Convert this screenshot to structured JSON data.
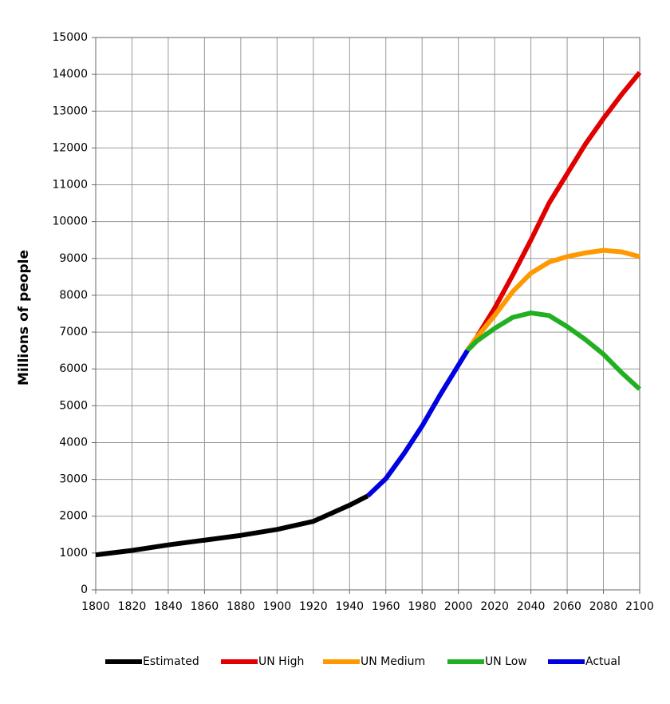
{
  "chart_data": {
    "type": "line",
    "y_label": "Millions of people",
    "x": [
      1800,
      1820,
      1840,
      1860,
      1880,
      1900,
      1920,
      1940,
      1950,
      1960,
      1970,
      1980,
      1990,
      2000,
      2005,
      2010,
      2020,
      2030,
      2040,
      2050,
      2060,
      2070,
      2080,
      2090,
      2100
    ],
    "series": [
      {
        "name": "Estimated",
        "color": "#000000",
        "values": [
          950,
          1070,
          1220,
          1350,
          1480,
          1640,
          1860,
          2300,
          2550,
          null,
          null,
          null,
          null,
          null,
          null,
          null,
          null,
          null,
          null,
          null,
          null,
          null,
          null,
          null,
          null
        ]
      },
      {
        "name": "UN High",
        "color": "#e00000",
        "values": [
          null,
          null,
          null,
          null,
          null,
          null,
          null,
          null,
          null,
          null,
          null,
          null,
          null,
          null,
          6500,
          6850,
          7650,
          8550,
          9500,
          10500,
          11300,
          12100,
          12800,
          13450,
          14050
        ]
      },
      {
        "name": "UN Medium",
        "color": "#ff9900",
        "values": [
          null,
          null,
          null,
          null,
          null,
          null,
          null,
          null,
          null,
          null,
          null,
          null,
          null,
          null,
          6500,
          6850,
          7450,
          8100,
          8600,
          8900,
          9050,
          9150,
          9220,
          9180,
          9050
        ]
      },
      {
        "name": "UN Low",
        "color": "#22b022",
        "values": [
          null,
          null,
          null,
          null,
          null,
          null,
          null,
          null,
          null,
          null,
          null,
          null,
          null,
          null,
          6500,
          6750,
          7100,
          7400,
          7520,
          7450,
          7150,
          6800,
          6400,
          5900,
          5450
        ]
      },
      {
        "name": "Actual",
        "color": "#0000e0",
        "values": [
          null,
          null,
          null,
          null,
          null,
          null,
          null,
          null,
          2550,
          3020,
          3700,
          4450,
          5300,
          6100,
          6500,
          null,
          null,
          null,
          null,
          null,
          null,
          null,
          null,
          null,
          null
        ]
      }
    ],
    "xlim": [
      1800,
      2100
    ],
    "xticks": [
      1800,
      1820,
      1840,
      1860,
      1880,
      1900,
      1920,
      1940,
      1960,
      1980,
      2000,
      2020,
      2040,
      2060,
      2080,
      2100
    ],
    "ylim": [
      0,
      15000
    ],
    "yticks": [
      0,
      1000,
      2000,
      3000,
      4000,
      5000,
      6000,
      7000,
      8000,
      9000,
      10000,
      11000,
      12000,
      13000,
      14000,
      15000
    ],
    "grid": true,
    "legend": "bottom"
  }
}
